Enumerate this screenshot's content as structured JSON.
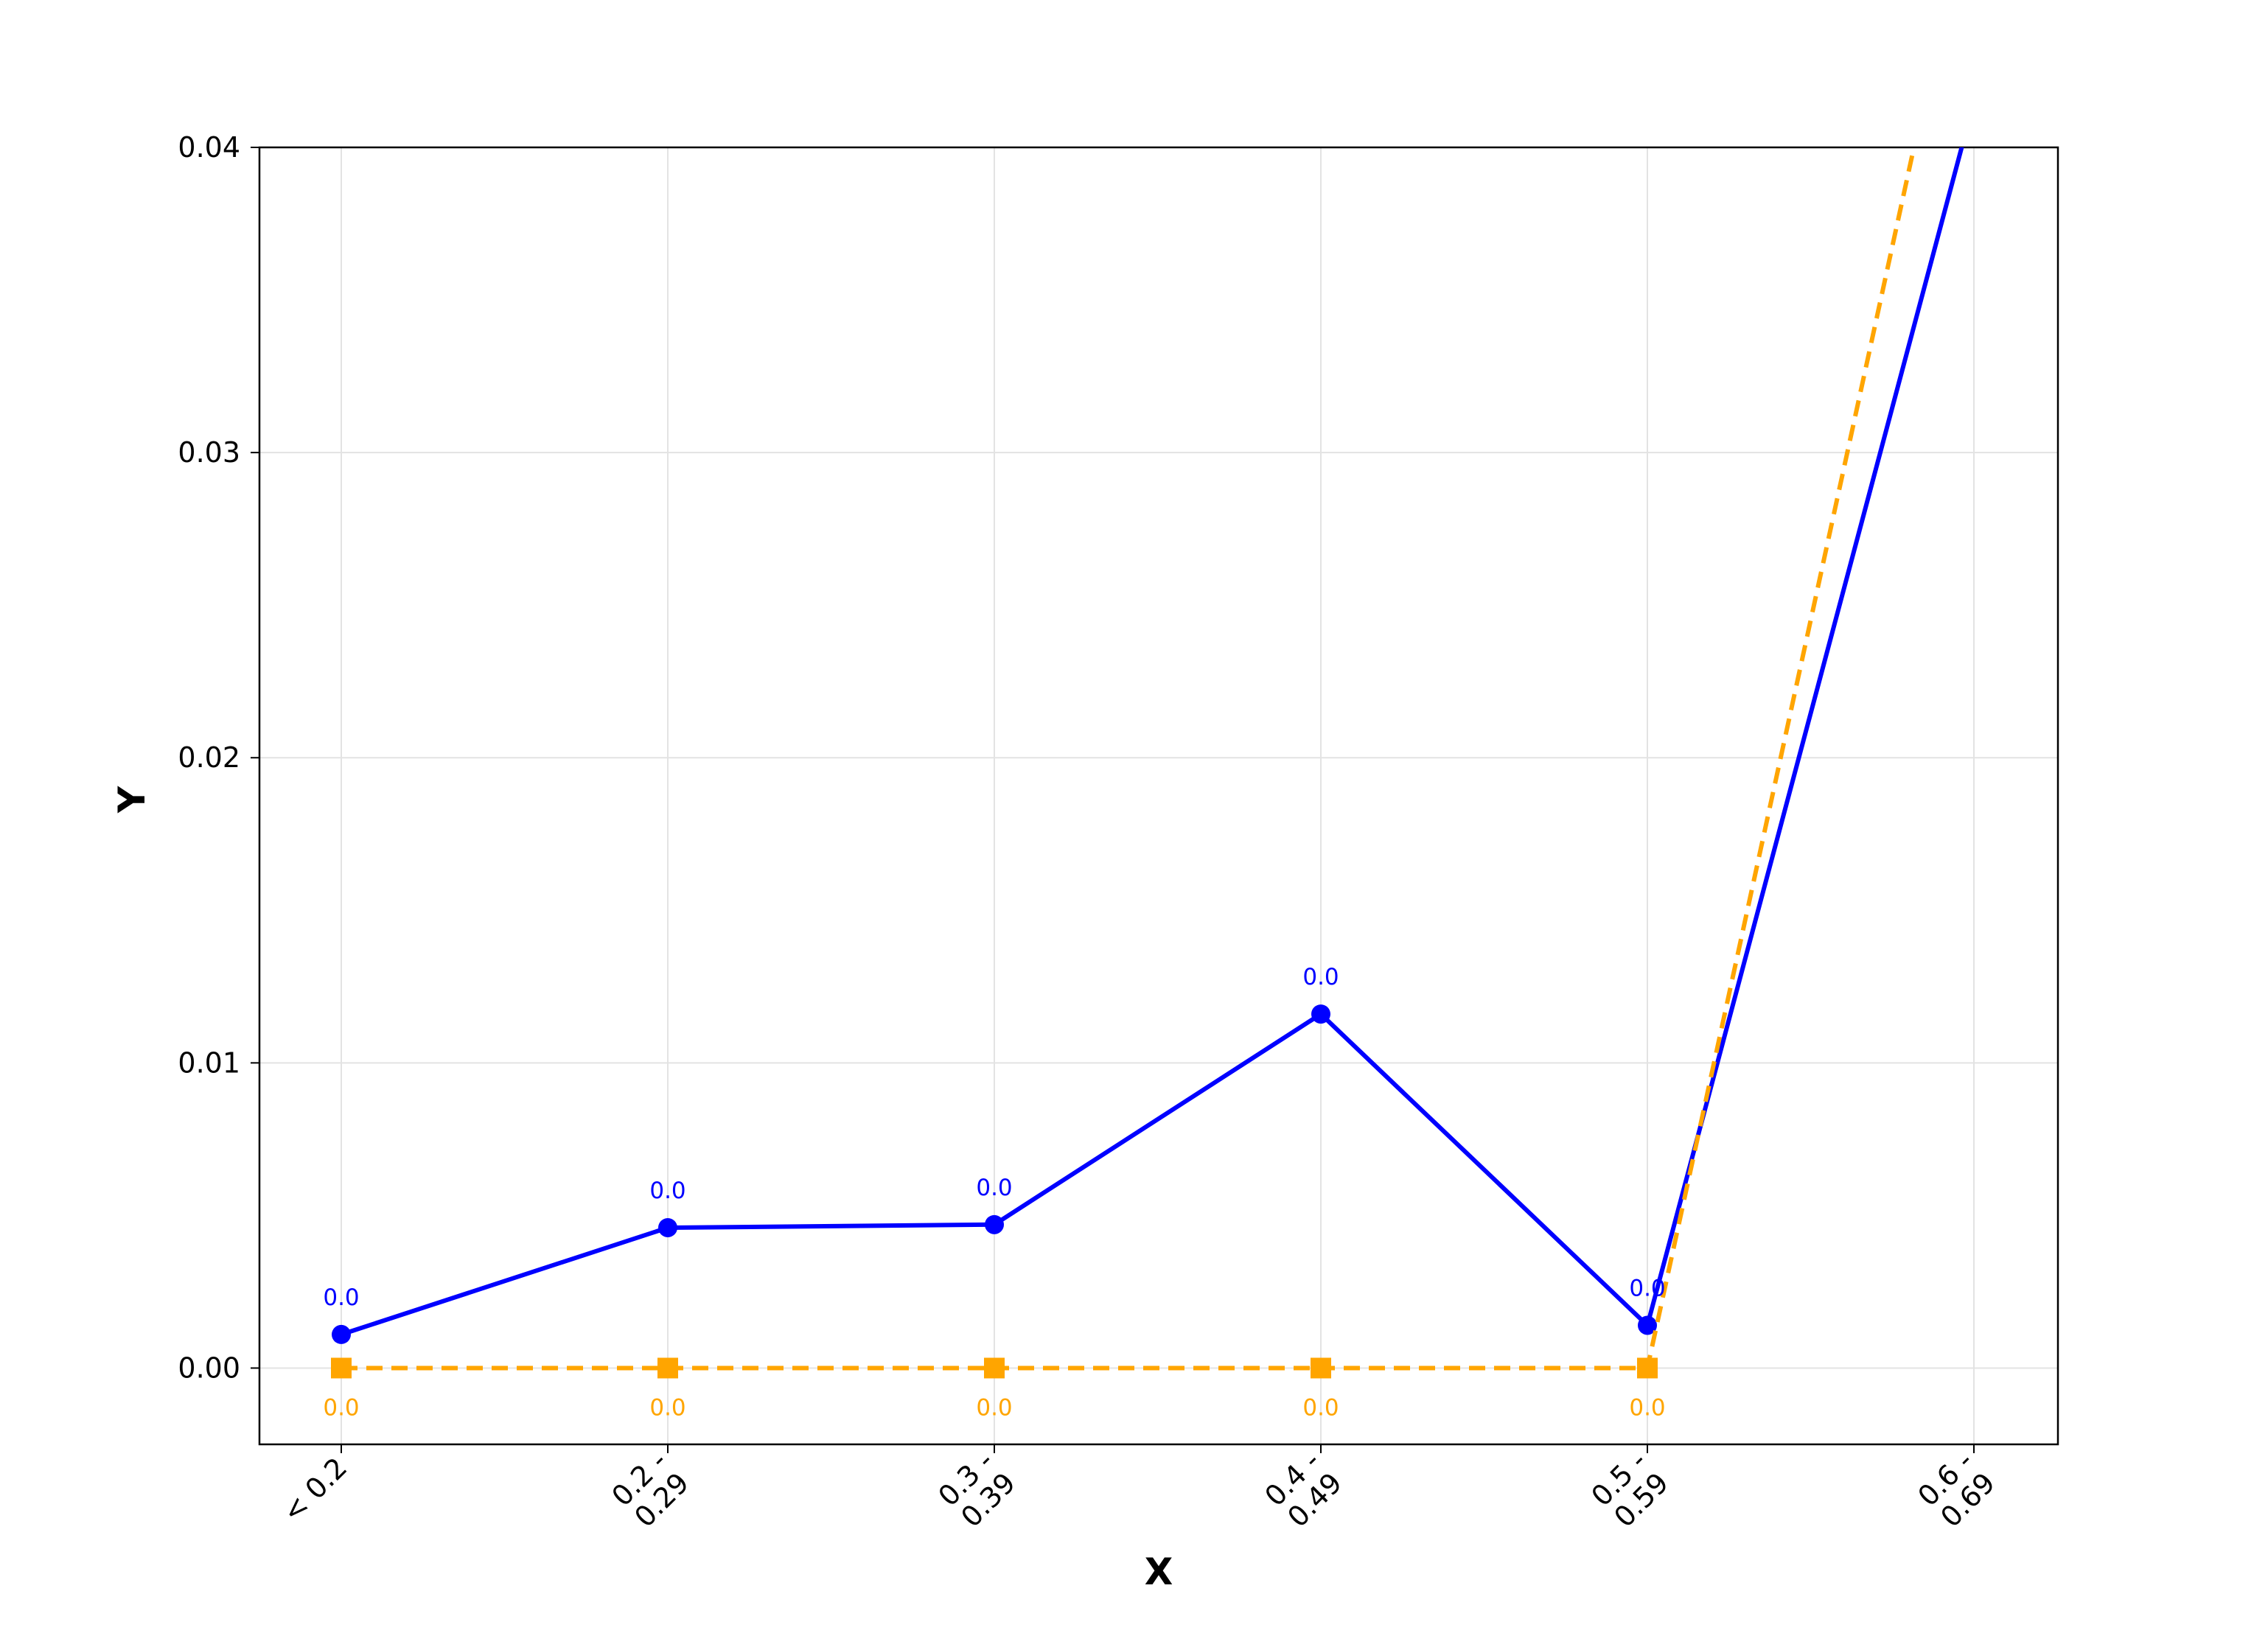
{
  "chart_data": {
    "type": "line",
    "title": "",
    "xlabel": "X",
    "ylabel": "Y",
    "categories": [
      "< 0.2",
      "0.2 -\n0.29",
      "0.3 -\n0.39",
      "0.4 -\n0.49",
      "0.5 -\n0.59",
      "0.6 -\n0.69"
    ],
    "y_ticks": [
      "0.00",
      "0.01",
      "0.02",
      "0.03",
      "0.04"
    ],
    "ylim": [
      -0.0025,
      0.04
    ],
    "grid": true,
    "legend": "none",
    "series": [
      {
        "color": "#0000ff",
        "line_style": "solid",
        "marker": "circle",
        "values": [
          0.0011,
          0.0046,
          0.0047,
          0.0116,
          0.0014,
          0.0415
        ],
        "data_labels": [
          "0.0",
          "0.0",
          "0.0",
          "0.0",
          "0.0",
          ""
        ]
      },
      {
        "color": "#ffa500",
        "line_style": "dashed",
        "marker": "square",
        "values": [
          0.0,
          0.0,
          0.0,
          0.0,
          0.0,
          0.049
        ],
        "data_labels": [
          "0.0",
          "0.0",
          "0.0",
          "0.0",
          "0.0",
          ""
        ]
      }
    ]
  }
}
